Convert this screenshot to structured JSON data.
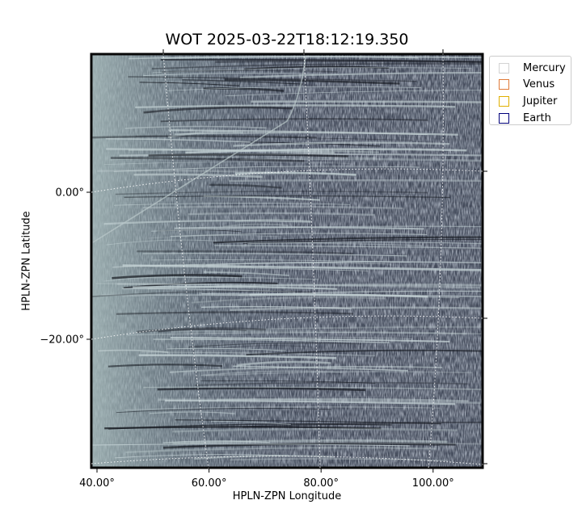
{
  "chart_data": {
    "type": "heatmap",
    "title": "WOT 2025-03-22T18:12:19.350",
    "xlabel": "HPLN-ZPN Longitude",
    "ylabel": "HPLN-ZPN Latitude",
    "xticks": [
      "40.00°",
      "60.00°",
      "80.00°",
      "100.00°"
    ],
    "yticks": [
      "0.00°",
      "−20.00°"
    ],
    "x_tick_values": [
      40,
      60,
      80,
      100
    ],
    "y_tick_values": [
      0,
      -20
    ],
    "colormap": "bone",
    "grid": true,
    "legend_position": "upper right outside",
    "legend": [
      {
        "name": "Mercury",
        "color": "#d3d3d3"
      },
      {
        "name": "Venus",
        "color": "#e07b39"
      },
      {
        "name": "Jupiter",
        "color": "#e0b000"
      },
      {
        "name": "Earth",
        "color": "#00007a"
      }
    ]
  }
}
